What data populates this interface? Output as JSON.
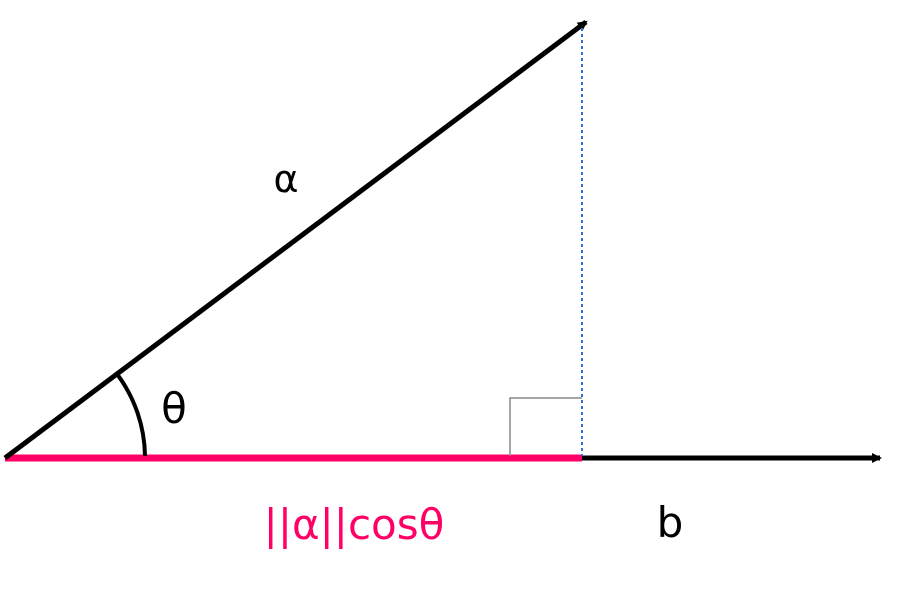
{
  "diagram": {
    "label_vector_a": "α",
    "label_vector_b": "b",
    "label_angle": "θ",
    "label_projection": "||α||cosθ",
    "colors": {
      "vectors": "#000000",
      "projection": "#ff0066",
      "perpendicular_dotted": "#2f6fdf",
      "right_angle_marker": "#888888",
      "background": "#ffffff"
    },
    "icons": {
      "vector_a_head": "arrowhead",
      "vector_b_head": "arrowhead"
    }
  }
}
